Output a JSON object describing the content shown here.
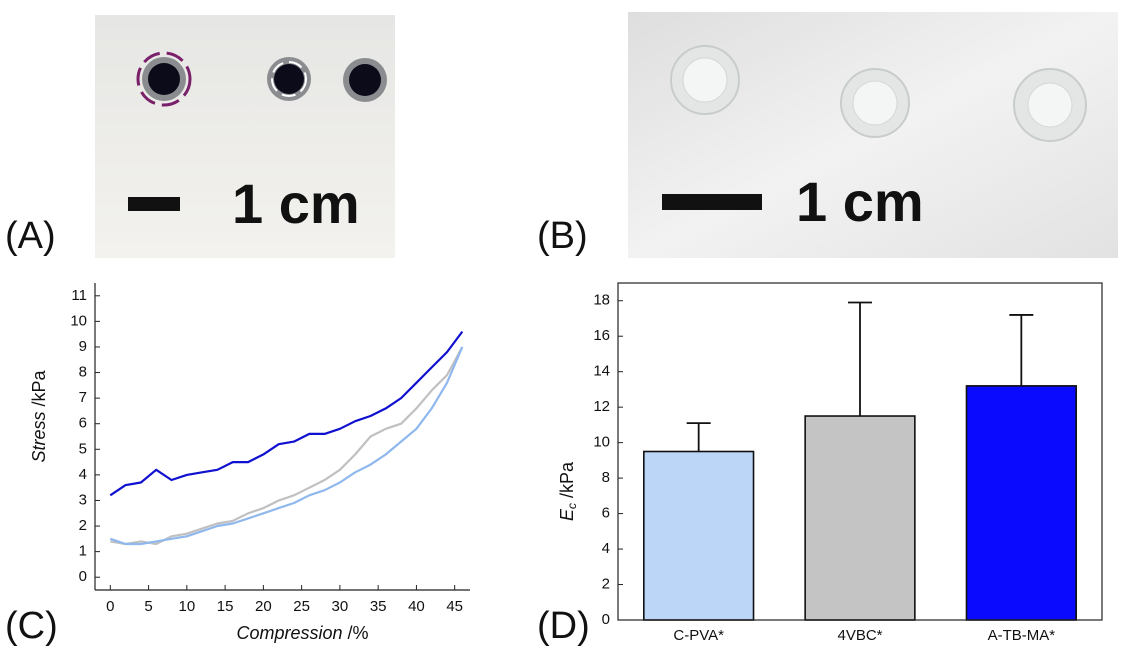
{
  "photos": [
    {
      "label": "(A)",
      "scale": "1 cm"
    },
    {
      "label": "(B)",
      "scale": "1 cm"
    }
  ],
  "chart_data": [
    {
      "type": "line",
      "label": "(C)",
      "x_label": {
        "symbol": "Compression",
        "unit": "/%"
      },
      "y_label": {
        "symbol": "Stress",
        "unit": "/kPa"
      },
      "x": [
        0,
        2,
        4,
        6,
        8,
        10,
        12,
        14,
        16,
        18,
        20,
        22,
        24,
        26,
        28,
        30,
        32,
        34,
        36,
        38,
        40,
        42,
        44,
        46
      ],
      "series": [
        {
          "color": "#c0c0c0",
          "values": [
            1.4,
            1.3,
            1.4,
            1.3,
            1.6,
            1.7,
            1.9,
            2.1,
            2.2,
            2.5,
            2.7,
            3.0,
            3.2,
            3.5,
            3.8,
            4.2,
            4.8,
            5.5,
            5.8,
            6.0,
            6.6,
            7.3,
            7.9,
            9.0
          ]
        },
        {
          "color": "#8fb8ee",
          "values": [
            1.5,
            1.3,
            1.3,
            1.4,
            1.5,
            1.6,
            1.8,
            2.0,
            2.1,
            2.3,
            2.5,
            2.7,
            2.9,
            3.2,
            3.4,
            3.7,
            4.1,
            4.4,
            4.8,
            5.3,
            5.8,
            6.6,
            7.6,
            9.0
          ]
        },
        {
          "color": "#1010d0",
          "values": [
            3.2,
            3.6,
            3.7,
            4.2,
            3.8,
            4.0,
            4.1,
            4.2,
            4.5,
            4.5,
            4.8,
            5.2,
            5.3,
            5.6,
            5.6,
            5.8,
            6.1,
            6.3,
            6.6,
            7.0,
            7.6,
            8.2,
            8.8,
            9.6
          ]
        }
      ],
      "xlim": [
        -2,
        47
      ],
      "xticks": [
        0,
        5,
        10,
        15,
        20,
        25,
        30,
        35,
        40,
        45
      ],
      "ylim": [
        -0.5,
        11.5
      ],
      "yticks": [
        0,
        1,
        2,
        3,
        4,
        5,
        6,
        7,
        8,
        9,
        10,
        11
      ]
    },
    {
      "type": "bar",
      "label": "(D)",
      "y_label": {
        "symbol": "E",
        "subscript": "c",
        "unit": "/kPa"
      },
      "categories": [
        "C-PVA*",
        "4VBC*",
        "A-TB-MA*"
      ],
      "values": [
        9.5,
        11.5,
        13.2
      ],
      "errors": [
        1.6,
        6.4,
        4.0
      ],
      "colors": [
        "#bcd6f7",
        "#c4c4c4",
        "#0a0aff"
      ],
      "ylim": [
        0,
        19
      ],
      "yticks": [
        0,
        2,
        4,
        6,
        8,
        10,
        12,
        14,
        16,
        18
      ]
    }
  ]
}
